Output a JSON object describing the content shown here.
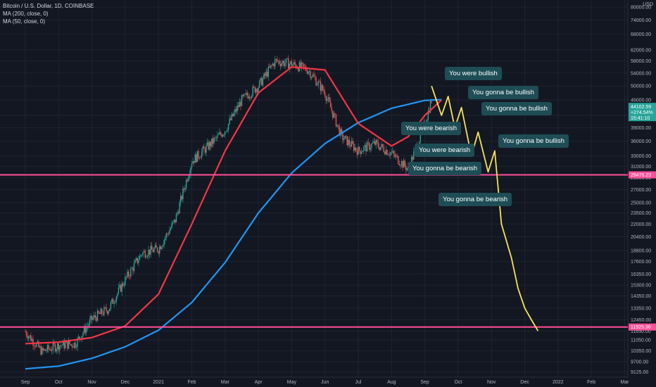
{
  "chart_data": {
    "type": "candlestick",
    "title": "Bitcoin / U.S. Dollar, 1D, COINBASE",
    "currency": "USD",
    "indicators": [
      {
        "label": "MA (200, close, 0)",
        "color": "#2196f3"
      },
      {
        "label": "MA (50, close, 0)",
        "color": "#f23645"
      }
    ],
    "price_scale": "log",
    "ylim": [
      9000,
      82000
    ],
    "x_ticks": [
      "Sep",
      "Oct",
      "Nov",
      "Dec",
      "2021",
      "Feb",
      "Mar",
      "Apr",
      "May",
      "Jun",
      "Jul",
      "Aug",
      "Sep",
      "Oct",
      "Nov",
      "Dec",
      "2022",
      "Feb",
      "Mar"
    ],
    "y_ticks": [
      80000,
      74000,
      68000,
      62000,
      58000,
      54000,
      50000,
      46000,
      42000,
      39000,
      36000,
      33000,
      31000,
      29000,
      27000,
      25000,
      23500,
      22000,
      20400,
      18800,
      17600,
      16350,
      15300,
      14350,
      13350,
      12450,
      11650,
      11050,
      10350,
      9700,
      9125
    ],
    "y_tick_labels": [
      "80000.00",
      "74000.00",
      "68000.00",
      "62000.00",
      "58000.00",
      "54000.00",
      "50000.00",
      "46000.00",
      "42000.00",
      "39000.00",
      "36000.00",
      "33000.00",
      "31000.00",
      "29000.00",
      "27000.00",
      "25000.00",
      "23500.00",
      "22000.00",
      "20400.00",
      "18800.00",
      "17600.00",
      "16350.00",
      "15300.00",
      "14350.00",
      "13350.00",
      "12450.00",
      "11650.00",
      "11050.00",
      "10350.00",
      "9700.00",
      "9125.00"
    ],
    "last_price": {
      "value": "44102.59",
      "change": "+274.54%",
      "countdown": "15:41:10",
      "color": "#26a69a"
    },
    "horizontal_lines": [
      {
        "value": 29476.23,
        "label": "29476.23",
        "color": "#ff4f9a"
      },
      {
        "value": 11925.36,
        "label": "11925.36",
        "color": "#ff4f9a"
      }
    ],
    "price_series": {
      "months": [
        0,
        0.5,
        1,
        1.5,
        2,
        2.5,
        3,
        3.5,
        4,
        4.5,
        5,
        5.5,
        6,
        6.5,
        7,
        7.5,
        8,
        8.5,
        9,
        9.5,
        10,
        10.5,
        11,
        11.5,
        12,
        12.2
      ],
      "close": [
        11600,
        10300,
        10700,
        10800,
        12500,
        13300,
        15800,
        18500,
        19000,
        22500,
        32000,
        35000,
        38500,
        46000,
        50000,
        58000,
        57000,
        55000,
        48000,
        37000,
        34000,
        35500,
        33500,
        30500,
        40000,
        46000
      ]
    },
    "ma200": {
      "months": [
        0,
        1,
        2,
        3,
        4,
        5,
        6,
        7,
        8,
        9,
        10,
        11,
        12,
        12.5
      ],
      "values": [
        9300,
        9450,
        9900,
        10600,
        11700,
        13800,
        17500,
        23500,
        29800,
        35500,
        40200,
        43800,
        45900,
        46100
      ]
    },
    "ma50": {
      "months": [
        0,
        1,
        2,
        3,
        4,
        5,
        6,
        7,
        8,
        9,
        10,
        11,
        11.5,
        12,
        12.5
      ],
      "values": [
        10800,
        10900,
        11200,
        12000,
        14500,
        22000,
        34000,
        48000,
        56000,
        55000,
        40000,
        35000,
        37000,
        42000,
        46000
      ]
    },
    "projection": {
      "color": "#f6e35a",
      "months": [
        12.2,
        12.5,
        12.7,
        12.9,
        13.1,
        13.4,
        13.6,
        13.9,
        14.1,
        14.3,
        14.6,
        14.8,
        15.0,
        15.2,
        15.4
      ],
      "values": [
        50000,
        42000,
        47000,
        39000,
        44000,
        33000,
        38000,
        30000,
        34000,
        22000,
        18000,
        15000,
        13350,
        12450,
        11650
      ]
    },
    "annotations": [
      {
        "text": "You were bullish",
        "month": 12.6,
        "value": 56000
      },
      {
        "text": "You gonna be bullish",
        "month": 13.3,
        "value": 50000
      },
      {
        "text": "You gonna be bullish",
        "month": 13.7,
        "value": 45500
      },
      {
        "text": "You were bearish",
        "month": 11.3,
        "value": 40500
      },
      {
        "text": "You were bearish",
        "month": 11.7,
        "value": 35500
      },
      {
        "text": "You gonna be bullish",
        "month": 14.2,
        "value": 37500
      },
      {
        "text": "You gonna be bearish",
        "month": 11.5,
        "value": 31800
      },
      {
        "text": "You gonna be bearish",
        "month": 12.4,
        "value": 26500
      }
    ]
  }
}
